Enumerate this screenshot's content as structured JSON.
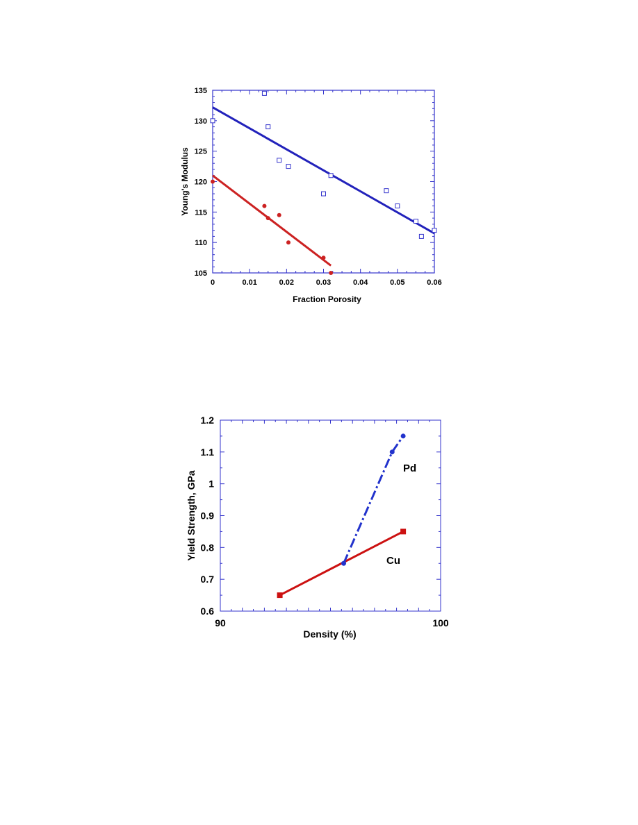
{
  "chart_data": [
    {
      "type": "scatter",
      "title": "",
      "xlabel": "Fraction Porosity",
      "ylabel": "Young's Modulus",
      "xlim": [
        0,
        0.06
      ],
      "ylim": [
        105,
        135
      ],
      "xticks": [
        "0",
        "0.01",
        "0.02",
        "0.03",
        "0.04",
        "0.05",
        "0.06"
      ],
      "yticks": [
        "105",
        "110",
        "115",
        "120",
        "125",
        "130",
        "135"
      ],
      "grid": false,
      "axis_color": "#3333cc",
      "series": [
        {
          "marker": "open-square",
          "color": "#3333cc",
          "points": [
            {
              "x": 0.0,
              "y": 130
            },
            {
              "x": 0.014,
              "y": 134.5
            },
            {
              "x": 0.015,
              "y": 129
            },
            {
              "x": 0.018,
              "y": 123.5
            },
            {
              "x": 0.0205,
              "y": 122.5
            },
            {
              "x": 0.03,
              "y": 118
            },
            {
              "x": 0.032,
              "y": 121
            },
            {
              "x": 0.047,
              "y": 118.5
            },
            {
              "x": 0.05,
              "y": 116
            },
            {
              "x": 0.055,
              "y": 113.5
            },
            {
              "x": 0.0565,
              "y": 111
            },
            {
              "x": 0.06,
              "y": 112
            }
          ],
          "fit": {
            "x": [
              0,
              0.06
            ],
            "y": [
              132.2,
              111.5
            ],
            "color": "#2222bb"
          }
        },
        {
          "marker": "filled-circle",
          "color": "#cc2222",
          "points": [
            {
              "x": 0.0,
              "y": 120
            },
            {
              "x": 0.014,
              "y": 116
            },
            {
              "x": 0.015,
              "y": 114
            },
            {
              "x": 0.018,
              "y": 114.5
            },
            {
              "x": 0.0205,
              "y": 110
            },
            {
              "x": 0.03,
              "y": 107.5
            },
            {
              "x": 0.032,
              "y": 105
            }
          ],
          "fit": {
            "x": [
              0,
              0.032
            ],
            "y": [
              121,
              106.2
            ],
            "color": "#cc2222"
          }
        }
      ]
    },
    {
      "type": "line",
      "title": "",
      "xlabel": "Density (%)",
      "ylabel": "Yield Strength, GPa",
      "xlim": [
        90,
        100
      ],
      "ylim": [
        0.6,
        1.2
      ],
      "xticks": [
        "90",
        "100"
      ],
      "yticks": [
        "0.6",
        "0.7",
        "0.8",
        "0.9",
        "1",
        "1.1",
        "1.2"
      ],
      "grid": false,
      "axis_color": "#3333cc",
      "series": [
        {
          "name": "Pd",
          "color": "#2233cc",
          "style": "dash-dot",
          "marker": "filled-circle",
          "x": [
            95.6,
            97.8,
            98.3
          ],
          "y": [
            0.75,
            1.1,
            1.15
          ]
        },
        {
          "name": "Cu",
          "color": "#cc1111",
          "style": "solid",
          "marker": "filled-square",
          "x": [
            92.7,
            95.5,
            98.3
          ],
          "y": [
            0.65,
            0.75,
            0.85
          ]
        }
      ]
    }
  ]
}
